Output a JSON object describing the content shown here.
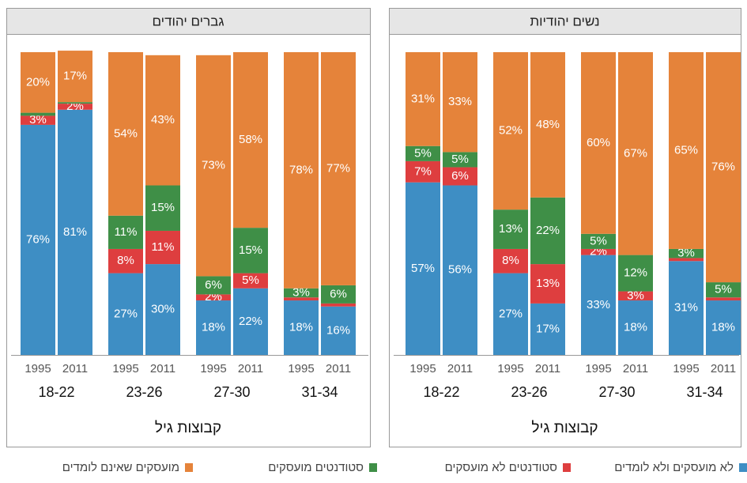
{
  "chart_data": [
    {
      "type": "bar",
      "stacked": true,
      "title": "גברים יהודים",
      "categories": [
        "1995",
        "2011",
        "1995",
        "2011",
        "1995",
        "2011",
        "1995",
        "2011"
      ],
      "groups": [
        "18-22",
        "23-26",
        "27-30",
        "31-34"
      ],
      "xlabel": "קבוצות גיל",
      "ylim": [
        0,
        100
      ],
      "series": [
        {
          "values": [
            76,
            81,
            27,
            30,
            18,
            22,
            18,
            16
          ],
          "value_labels": [
            "76%",
            "81%",
            "27%",
            "30%",
            "18%",
            "22%",
            "18%",
            "16%"
          ]
        },
        {
          "values": [
            3,
            2,
            8,
            11,
            2,
            5,
            1,
            1
          ],
          "value_labels": [
            "3%",
            "2%",
            "8%",
            "11%",
            "2%",
            "5%",
            null,
            null
          ]
        },
        {
          "values": [
            1,
            0.5,
            11,
            15,
            6,
            15,
            3,
            6
          ],
          "value_labels": [
            null,
            null,
            "11%",
            "15%",
            "6%",
            "15%",
            "3%",
            "6%"
          ]
        },
        {
          "values": [
            20,
            17,
            54,
            43,
            73,
            58,
            78,
            77
          ],
          "value_labels": [
            "20%",
            "17%",
            "54%",
            "43%",
            "73%",
            "58%",
            "78%",
            "77%"
          ]
        }
      ]
    },
    {
      "type": "bar",
      "stacked": true,
      "title": "נשים יהודיות",
      "categories": [
        "1995",
        "2011",
        "1995",
        "2011",
        "1995",
        "2011",
        "1995",
        "2011"
      ],
      "groups": [
        "18-22",
        "23-26",
        "27-30",
        "31-34"
      ],
      "xlabel": "קבוצות גיל",
      "ylim": [
        0,
        100
      ],
      "series": [
        {
          "values": [
            57,
            56,
            27,
            17,
            33,
            18,
            31,
            18
          ],
          "value_labels": [
            "57%",
            "56%",
            "27%",
            "17%",
            "33%",
            "18%",
            "31%",
            "18%"
          ]
        },
        {
          "values": [
            7,
            6,
            8,
            13,
            2,
            3,
            1,
            1
          ],
          "value_labels": [
            "7%",
            "6%",
            "8%",
            "13%",
            "2%",
            "3%",
            null,
            null
          ]
        },
        {
          "values": [
            5,
            5,
            13,
            22,
            5,
            12,
            3,
            5
          ],
          "value_labels": [
            "5%",
            "5%",
            "13%",
            "22%",
            "5%",
            "12%",
            "3%",
            "5%"
          ]
        },
        {
          "values": [
            31,
            33,
            52,
            48,
            60,
            67,
            65,
            76
          ],
          "value_labels": [
            "31%",
            "33%",
            "52%",
            "48%",
            "60%",
            "67%",
            "65%",
            "76%"
          ]
        }
      ]
    }
  ],
  "legend": [
    {
      "name": "לא מועסקים ולא לומדים",
      "color": "#3e8ec4"
    },
    {
      "name": "סטודנטים לא מועסקים",
      "color": "#de3e3f"
    },
    {
      "name": "סטודנטים מועסקים",
      "color": "#3f8f47"
    },
    {
      "name": "מועסקים שאינם לומדים",
      "color": "#e5833a"
    }
  ]
}
